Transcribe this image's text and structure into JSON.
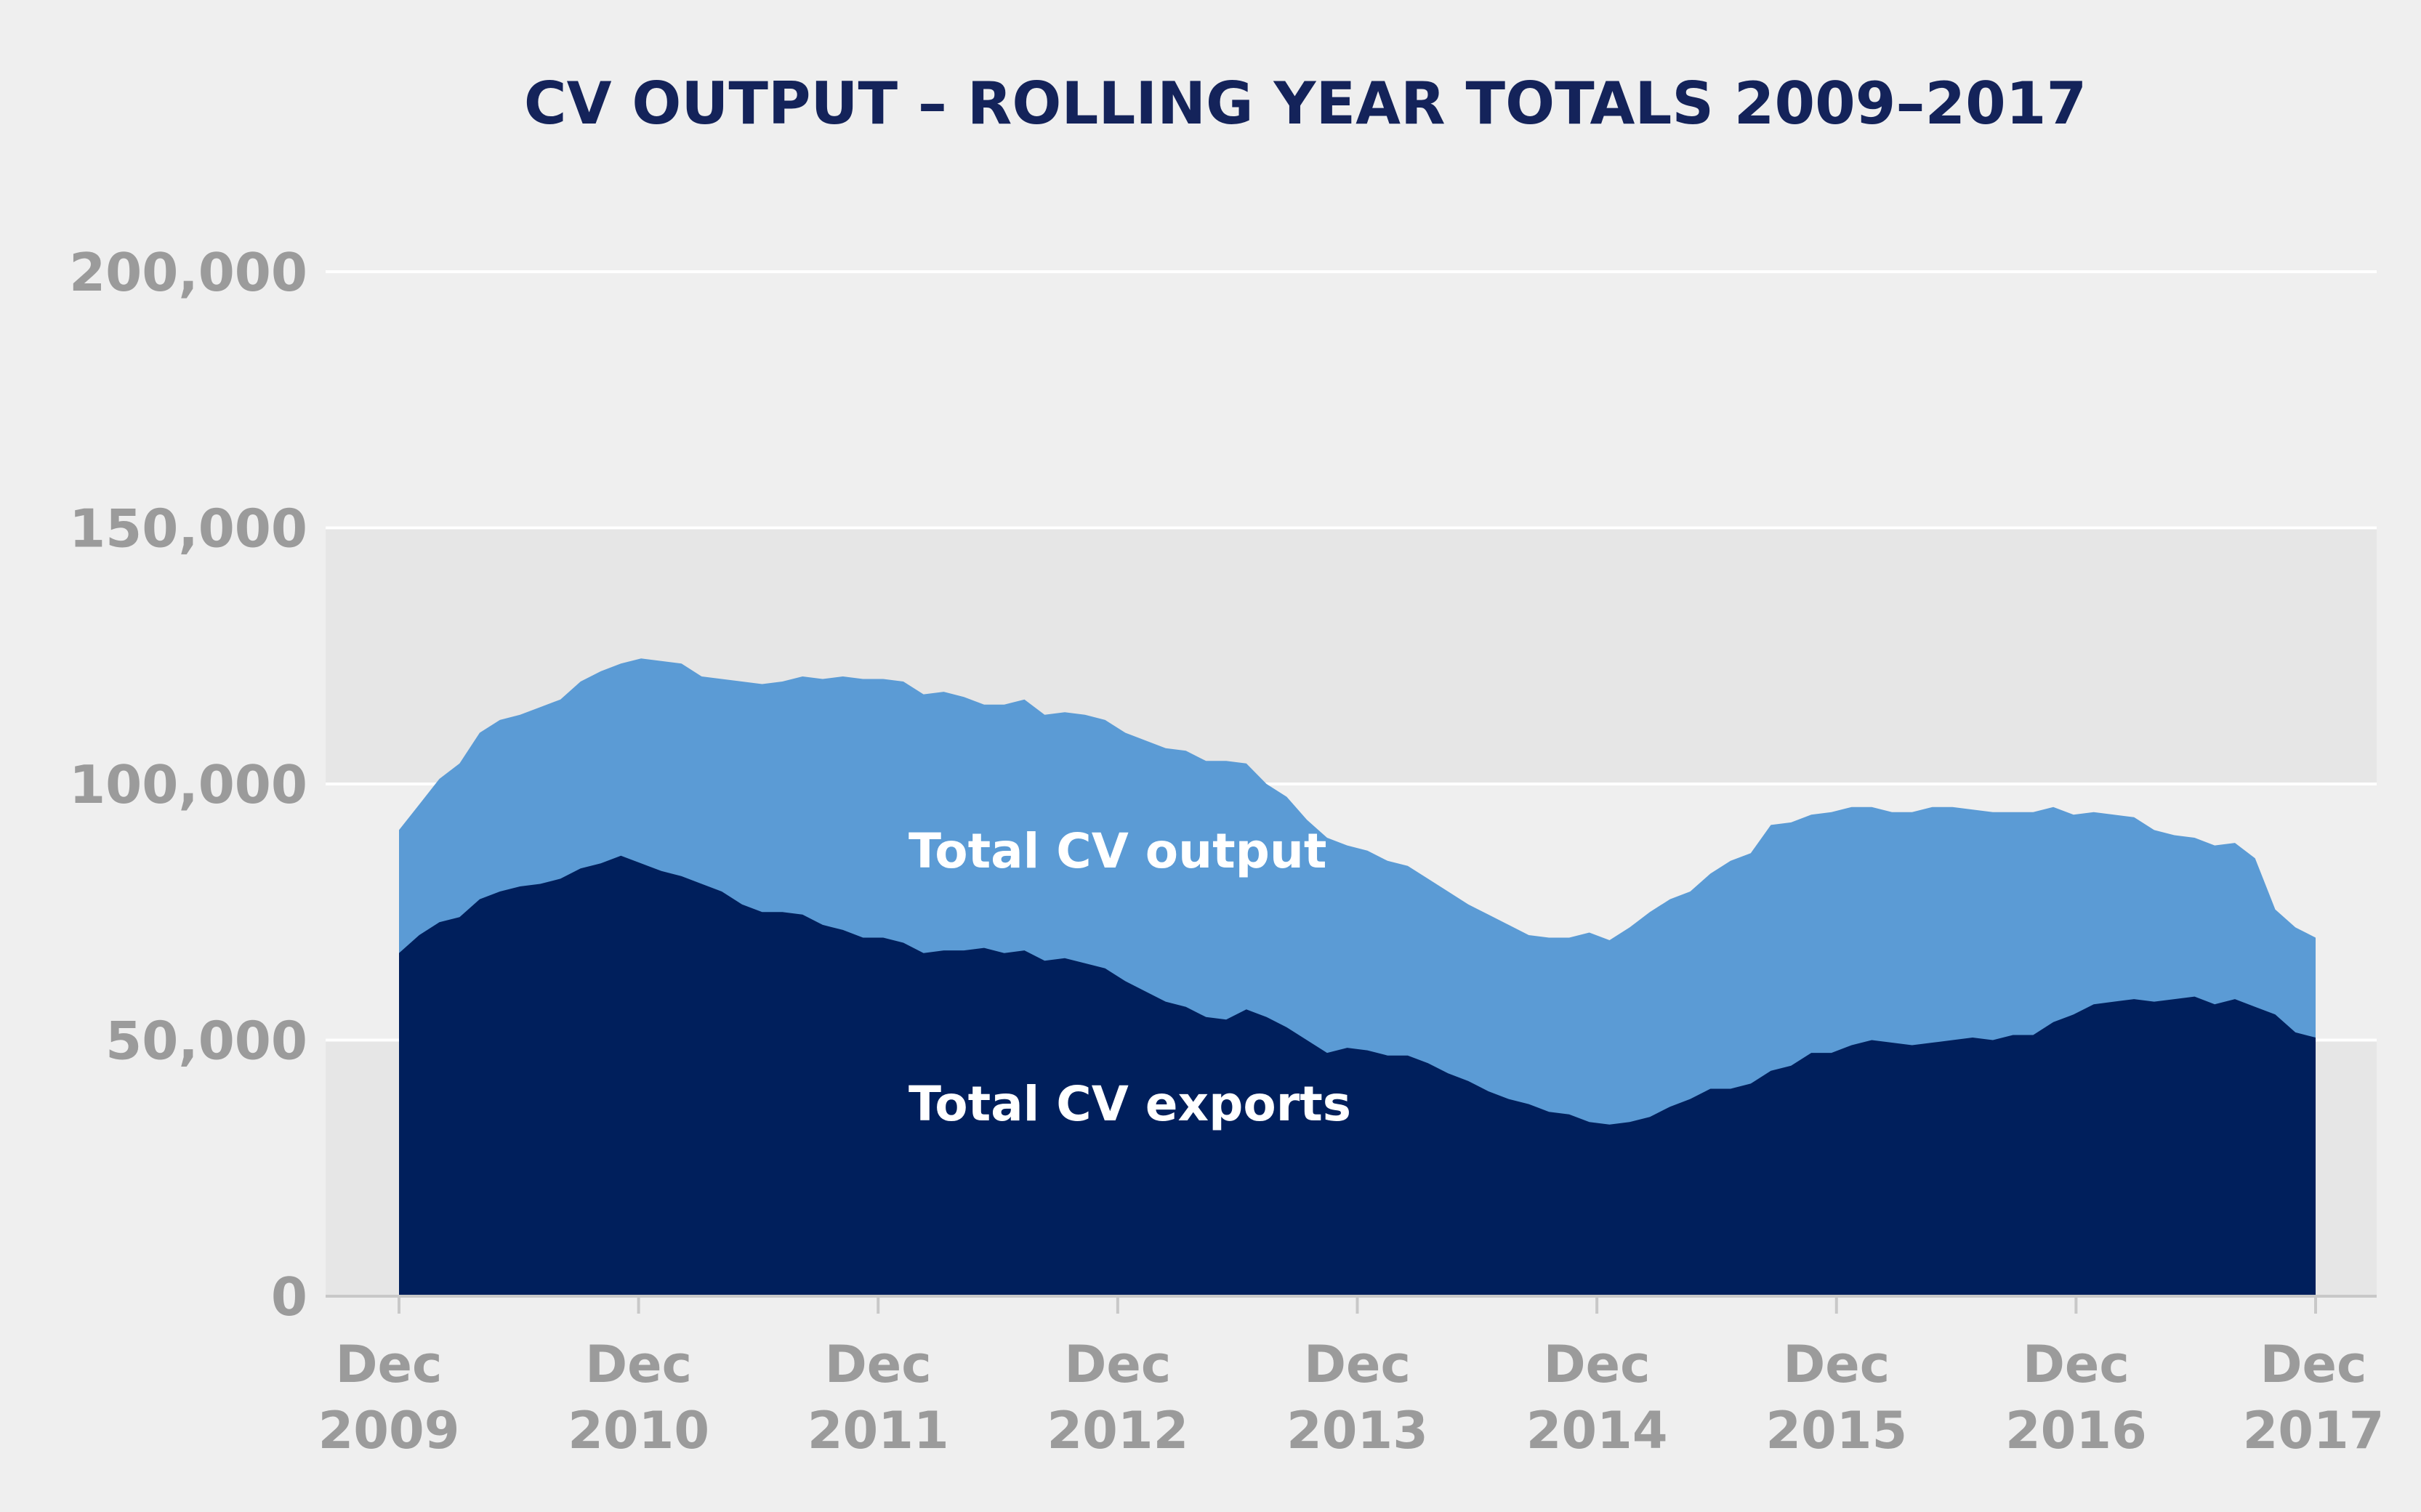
{
  "chart_data": {
    "type": "area",
    "stacking": "overlay",
    "title": "CV OUTPUT – ROLLING YEAR TOTALS 2009–2017",
    "ylim": [
      0,
      200000
    ],
    "yticks": [
      0,
      50000,
      100000,
      150000,
      200000
    ],
    "ytick_labels": [
      "0",
      "50,000",
      "100,000",
      "150,000",
      "200,000"
    ],
    "xlim": [
      "Dec 2009",
      "Dec 2017"
    ],
    "xtick_labels": [
      {
        "line1": "Dec",
        "line2": "2009"
      },
      {
        "line1": "Dec",
        "line2": "2010"
      },
      {
        "line1": "Dec",
        "line2": "2011"
      },
      {
        "line1": "Dec",
        "line2": "2012"
      },
      {
        "line1": "Dec",
        "line2": "2013"
      },
      {
        "line1": "Dec",
        "line2": "2014"
      },
      {
        "line1": "Dec",
        "line2": "2015"
      },
      {
        "line1": "Dec",
        "line2": "2016"
      },
      {
        "line1": "Dec",
        "line2": "2017"
      }
    ],
    "grid": true,
    "colors": {
      "output": "#5b9bd5",
      "exports": "#001f5c",
      "band": "#e6e6e6",
      "gridline": "#ffffff",
      "axis": "#c8c8c8"
    },
    "series": [
      {
        "name": "Total CV output",
        "values": [
          91000,
          96000,
          101000,
          104000,
          110000,
          112500,
          113500,
          115000,
          116500,
          120000,
          122000,
          123500,
          124500,
          124000,
          123500,
          121000,
          120500,
          120000,
          119500,
          120000,
          121000,
          120500,
          121000,
          120500,
          120500,
          120000,
          117500,
          118000,
          117000,
          115500,
          115500,
          116500,
          113500,
          114000,
          113500,
          112500,
          110000,
          108500,
          107000,
          106500,
          104500,
          104500,
          104000,
          100000,
          97500,
          93000,
          89500,
          88000,
          87000,
          85000,
          84000,
          81500,
          79000,
          76500,
          74500,
          72500,
          70500,
          70000,
          70000,
          71000,
          69500,
          72000,
          75000,
          77500,
          79000,
          82500,
          85000,
          86500,
          92000,
          92500,
          94000,
          94500,
          95500,
          95500,
          94500,
          94500,
          95500,
          95500,
          95000,
          94500,
          94500,
          94500,
          95500,
          94000,
          94500,
          94000,
          93500,
          91000,
          90000,
          89500,
          88000,
          88500,
          85500,
          75500,
          72000,
          70000
        ]
      },
      {
        "name": "Total CV exports",
        "values": [
          67000,
          70500,
          73000,
          74000,
          77500,
          79000,
          80000,
          80500,
          81500,
          83500,
          84500,
          86000,
          84500,
          83000,
          82000,
          80500,
          79000,
          76500,
          75000,
          75000,
          74500,
          72500,
          71500,
          70000,
          70000,
          69000,
          67000,
          67500,
          67500,
          68000,
          67000,
          67500,
          65500,
          66000,
          65000,
          64000,
          61500,
          59500,
          57500,
          56500,
          54500,
          54000,
          56000,
          54500,
          52500,
          50000,
          47500,
          48500,
          48000,
          47000,
          47000,
          45500,
          43500,
          42000,
          40000,
          38500,
          37500,
          36000,
          35500,
          34000,
          33500,
          34000,
          35000,
          37000,
          38500,
          40500,
          40500,
          41500,
          44000,
          45000,
          47500,
          47500,
          49000,
          50000,
          49500,
          49000,
          49500,
          50000,
          50500,
          50000,
          51000,
          51000,
          53500,
          55000,
          57000,
          57500,
          58000,
          57500,
          58000,
          58500,
          57000,
          58000,
          56500,
          55000,
          51500,
          50500
        ]
      }
    ],
    "annotations": [
      {
        "text": "Total CV output",
        "series": "Total CV output"
      },
      {
        "text": "Total CV exports",
        "series": "Total CV exports"
      }
    ]
  }
}
